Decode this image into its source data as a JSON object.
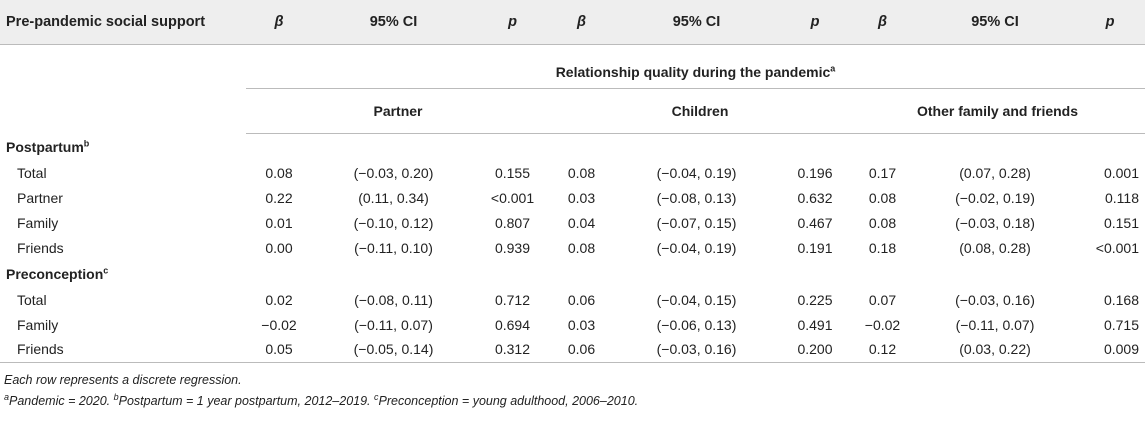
{
  "header": {
    "col_label": "Pre-pandemic social support",
    "beta": "β",
    "ci": "95% CI",
    "p": "p"
  },
  "spanner": {
    "title": "Relationship quality during the pandemic",
    "title_sup": "a",
    "groups": [
      "Partner",
      "Children",
      "Other family and friends"
    ]
  },
  "sections": [
    {
      "label": "Postpartum",
      "sup": "b",
      "rows": [
        {
          "name": "Total",
          "v": [
            "0.08",
            "(−0.03, 0.20)",
            "0.155",
            "0.08",
            "(−0.04, 0.19)",
            "0.196",
            "0.17",
            "(0.07, 0.28)",
            "0.001"
          ]
        },
        {
          "name": "Partner",
          "v": [
            "0.22",
            "(0.11, 0.34)",
            "<0.001",
            "0.03",
            "(−0.08, 0.13)",
            "0.632",
            "0.08",
            "(−0.02, 0.19)",
            "0.118"
          ]
        },
        {
          "name": "Family",
          "v": [
            "0.01",
            "(−0.10, 0.12)",
            "0.807",
            "0.04",
            "(−0.07, 0.15)",
            "0.467",
            "0.08",
            "(−0.03, 0.18)",
            "0.151"
          ]
        },
        {
          "name": "Friends",
          "v": [
            "0.00",
            "(−0.11, 0.10)",
            "0.939",
            "0.08",
            "(−0.04, 0.19)",
            "0.191",
            "0.18",
            "(0.08, 0.28)",
            "<0.001"
          ]
        }
      ]
    },
    {
      "label": "Preconception",
      "sup": "c",
      "rows": [
        {
          "name": "Total",
          "v": [
            "0.02",
            "(−0.08, 0.11)",
            "0.712",
            "0.06",
            "(−0.04, 0.15)",
            "0.225",
            "0.07",
            "(−0.03, 0.16)",
            "0.168"
          ]
        },
        {
          "name": "Family",
          "v": [
            "−0.02",
            "(−0.11, 0.07)",
            "0.694",
            "0.03",
            "(−0.06, 0.13)",
            "0.491",
            "−0.02",
            "(−0.11, 0.07)",
            "0.715"
          ]
        },
        {
          "name": "Friends",
          "v": [
            "0.05",
            "(−0.05, 0.14)",
            "0.312",
            "0.06",
            "(−0.03, 0.16)",
            "0.200",
            "0.12",
            "(0.03, 0.22)",
            "0.009"
          ]
        }
      ]
    }
  ],
  "notes": {
    "line1": "Each row represents a discrete regression.",
    "n_a_sup": "a",
    "n_a": "Pandemic = 2020.",
    "n_b_sup": "b",
    "n_b": "Postpartum = 1 year postpartum, 2012–2019.",
    "n_c_sup": "c",
    "n_c": "Preconception = young adulthood, 2006–2010."
  }
}
